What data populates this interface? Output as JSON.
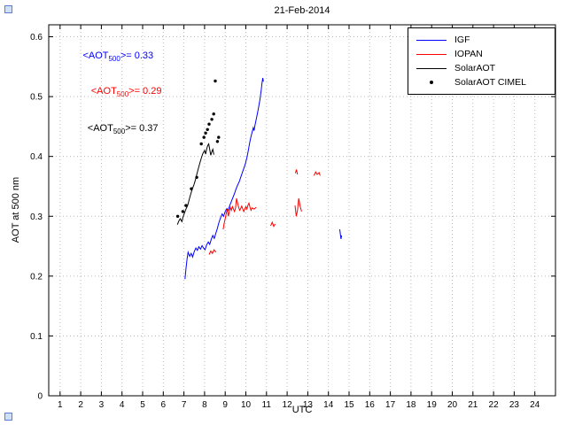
{
  "chart_data": {
    "type": "line",
    "title": "21-Feb-2014",
    "xlabel": "UTC",
    "ylabel": "AOT at 500 nm",
    "xlim": [
      0.45,
      25.0
    ],
    "ylim": [
      0,
      0.62
    ],
    "grid": true,
    "legend_position": "top-right",
    "x_ticks": [
      1,
      2,
      3,
      4,
      5,
      6,
      7,
      8,
      9,
      10,
      11,
      12,
      13,
      14,
      15,
      16,
      17,
      18,
      19,
      20,
      21,
      22,
      23,
      24
    ],
    "y_ticks": [
      "0",
      "0.1",
      "0.2",
      "0.3",
      "0.4",
      "0.5",
      "0.6"
    ],
    "series": [
      {
        "name": "IGF",
        "color": "#0000ff",
        "type": "line",
        "segments": [
          [
            [
              7.05,
              0.195
            ],
            [
              7.1,
              0.212
            ],
            [
              7.15,
              0.228
            ],
            [
              7.2,
              0.24
            ],
            [
              7.28,
              0.233
            ],
            [
              7.35,
              0.238
            ],
            [
              7.42,
              0.232
            ],
            [
              7.5,
              0.241
            ],
            [
              7.58,
              0.247
            ],
            [
              7.65,
              0.243
            ],
            [
              7.72,
              0.249
            ],
            [
              7.8,
              0.245
            ],
            [
              7.88,
              0.251
            ],
            [
              7.95,
              0.247
            ],
            [
              8.02,
              0.244
            ],
            [
              8.1,
              0.252
            ],
            [
              8.18,
              0.257
            ],
            [
              8.25,
              0.253
            ],
            [
              8.32,
              0.261
            ],
            [
              8.4,
              0.268
            ],
            [
              8.47,
              0.263
            ],
            [
              8.55,
              0.272
            ],
            [
              8.62,
              0.28
            ],
            [
              8.7,
              0.29
            ],
            [
              8.78,
              0.298
            ],
            [
              8.85,
              0.304
            ],
            [
              8.92,
              0.3
            ],
            [
              9.0,
              0.308
            ],
            [
              9.08,
              0.313
            ],
            [
              9.15,
              0.31
            ],
            [
              9.22,
              0.318
            ],
            [
              9.3,
              0.325
            ],
            [
              9.38,
              0.332
            ],
            [
              9.45,
              0.338
            ],
            [
              9.52,
              0.345
            ],
            [
              9.6,
              0.352
            ],
            [
              9.68,
              0.358
            ],
            [
              9.75,
              0.365
            ],
            [
              9.82,
              0.372
            ],
            [
              9.9,
              0.38
            ],
            [
              9.98,
              0.388
            ],
            [
              10.05,
              0.398
            ],
            [
              10.12,
              0.41
            ],
            [
              10.18,
              0.422
            ],
            [
              10.24,
              0.432
            ],
            [
              10.3,
              0.44
            ],
            [
              10.36,
              0.448
            ],
            [
              10.4,
              0.443
            ],
            [
              10.44,
              0.452
            ],
            [
              10.5,
              0.462
            ],
            [
              10.56,
              0.472
            ],
            [
              10.62,
              0.483
            ],
            [
              10.68,
              0.495
            ],
            [
              10.74,
              0.51
            ],
            [
              10.78,
              0.522
            ],
            [
              10.82,
              0.531
            ],
            [
              10.85,
              0.525
            ]
          ],
          [
            [
              14.55,
              0.278
            ],
            [
              14.58,
              0.27
            ],
            [
              14.61,
              0.262
            ],
            [
              14.64,
              0.268
            ]
          ]
        ]
      },
      {
        "name": "IOPAN",
        "color": "#ff0000",
        "type": "line",
        "segments": [
          [
            [
              8.22,
              0.236
            ],
            [
              8.3,
              0.242
            ],
            [
              8.38,
              0.238
            ],
            [
              8.46,
              0.244
            ],
            [
              8.55,
              0.24
            ]
          ],
          [
            [
              8.9,
              0.278
            ],
            [
              8.95,
              0.288
            ],
            [
              9.0,
              0.296
            ],
            [
              9.05,
              0.305
            ],
            [
              9.1,
              0.312
            ],
            [
              9.15,
              0.3
            ],
            [
              9.2,
              0.308
            ],
            [
              9.25,
              0.315
            ],
            [
              9.3,
              0.31
            ],
            [
              9.35,
              0.316
            ],
            [
              9.4,
              0.312
            ],
            [
              9.45,
              0.308
            ],
            [
              9.5,
              0.314
            ],
            [
              9.55,
              0.33
            ],
            [
              9.6,
              0.322
            ],
            [
              9.65,
              0.315
            ],
            [
              9.7,
              0.31
            ],
            [
              9.75,
              0.313
            ],
            [
              9.8,
              0.317
            ],
            [
              9.85,
              0.312
            ],
            [
              9.9,
              0.308
            ],
            [
              9.95,
              0.312
            ],
            [
              10.0,
              0.316
            ],
            [
              10.05,
              0.312
            ],
            [
              10.1,
              0.318
            ],
            [
              10.15,
              0.322
            ],
            [
              10.2,
              0.315
            ],
            [
              10.25,
              0.31
            ],
            [
              10.3,
              0.314
            ],
            [
              10.4,
              0.312
            ],
            [
              10.5,
              0.315
            ]
          ],
          [
            [
              11.2,
              0.284
            ],
            [
              11.28,
              0.29
            ],
            [
              11.35,
              0.283
            ],
            [
              11.42,
              0.287
            ]
          ],
          [
            [
              12.4,
              0.372
            ],
            [
              12.45,
              0.378
            ],
            [
              12.5,
              0.37
            ]
          ],
          [
            [
              12.38,
              0.318
            ],
            [
              12.44,
              0.3
            ],
            [
              12.5,
              0.31
            ],
            [
              12.56,
              0.33
            ],
            [
              12.62,
              0.318
            ],
            [
              12.7,
              0.308
            ]
          ],
          [
            [
              13.3,
              0.368
            ],
            [
              13.38,
              0.374
            ],
            [
              13.45,
              0.37
            ],
            [
              13.55,
              0.373
            ],
            [
              13.6,
              0.368
            ]
          ]
        ]
      },
      {
        "name": "SolarAOT",
        "color": "#000000",
        "type": "line",
        "segments": [
          [
            [
              6.68,
              0.286
            ],
            [
              6.75,
              0.292
            ],
            [
              6.82,
              0.296
            ],
            [
              6.9,
              0.291
            ],
            [
              6.95,
              0.298
            ],
            [
              7.02,
              0.305
            ],
            [
              7.1,
              0.312
            ],
            [
              7.18,
              0.318
            ],
            [
              7.25,
              0.327
            ],
            [
              7.32,
              0.336
            ],
            [
              7.4,
              0.345
            ],
            [
              7.48,
              0.352
            ],
            [
              7.55,
              0.36
            ],
            [
              7.62,
              0.37
            ],
            [
              7.7,
              0.38
            ],
            [
              7.78,
              0.39
            ],
            [
              7.85,
              0.398
            ],
            [
              7.92,
              0.405
            ],
            [
              8.0,
              0.41
            ],
            [
              8.05,
              0.404
            ],
            [
              8.1,
              0.412
            ],
            [
              8.15,
              0.418
            ],
            [
              8.2,
              0.421
            ],
            [
              8.25,
              0.412
            ],
            [
              8.3,
              0.402
            ],
            [
              8.35,
              0.408
            ],
            [
              8.4,
              0.412
            ],
            [
              8.45,
              0.403
            ]
          ]
        ]
      },
      {
        "name": "SolarAOT CIMEL",
        "color": "#000000",
        "type": "scatter",
        "points": [
          [
            6.7,
            0.3
          ],
          [
            6.95,
            0.308
          ],
          [
            7.1,
            0.318
          ],
          [
            7.36,
            0.346
          ],
          [
            7.62,
            0.365
          ],
          [
            7.84,
            0.421
          ],
          [
            7.97,
            0.432
          ],
          [
            8.05,
            0.439
          ],
          [
            8.14,
            0.445
          ],
          [
            8.22,
            0.454
          ],
          [
            8.35,
            0.462
          ],
          [
            8.44,
            0.471
          ],
          [
            8.52,
            0.526
          ],
          [
            8.62,
            0.425
          ],
          [
            8.68,
            0.432
          ]
        ]
      }
    ],
    "annotations": [
      {
        "text_prefix": "<AOT",
        "text_sub": "500",
        "text_suffix": ">= 0.33",
        "color": "#0000ff",
        "x": 2.1,
        "y": 0.567
      },
      {
        "text_prefix": "<AOT",
        "text_sub": "500",
        "text_suffix": ">= 0.29",
        "color": "#ff0000",
        "x": 2.5,
        "y": 0.507
      },
      {
        "text_prefix": "<AOT",
        "text_sub": "500",
        "text_suffix": ">= 0.37",
        "color": "#000000",
        "x": 2.33,
        "y": 0.445
      }
    ]
  }
}
